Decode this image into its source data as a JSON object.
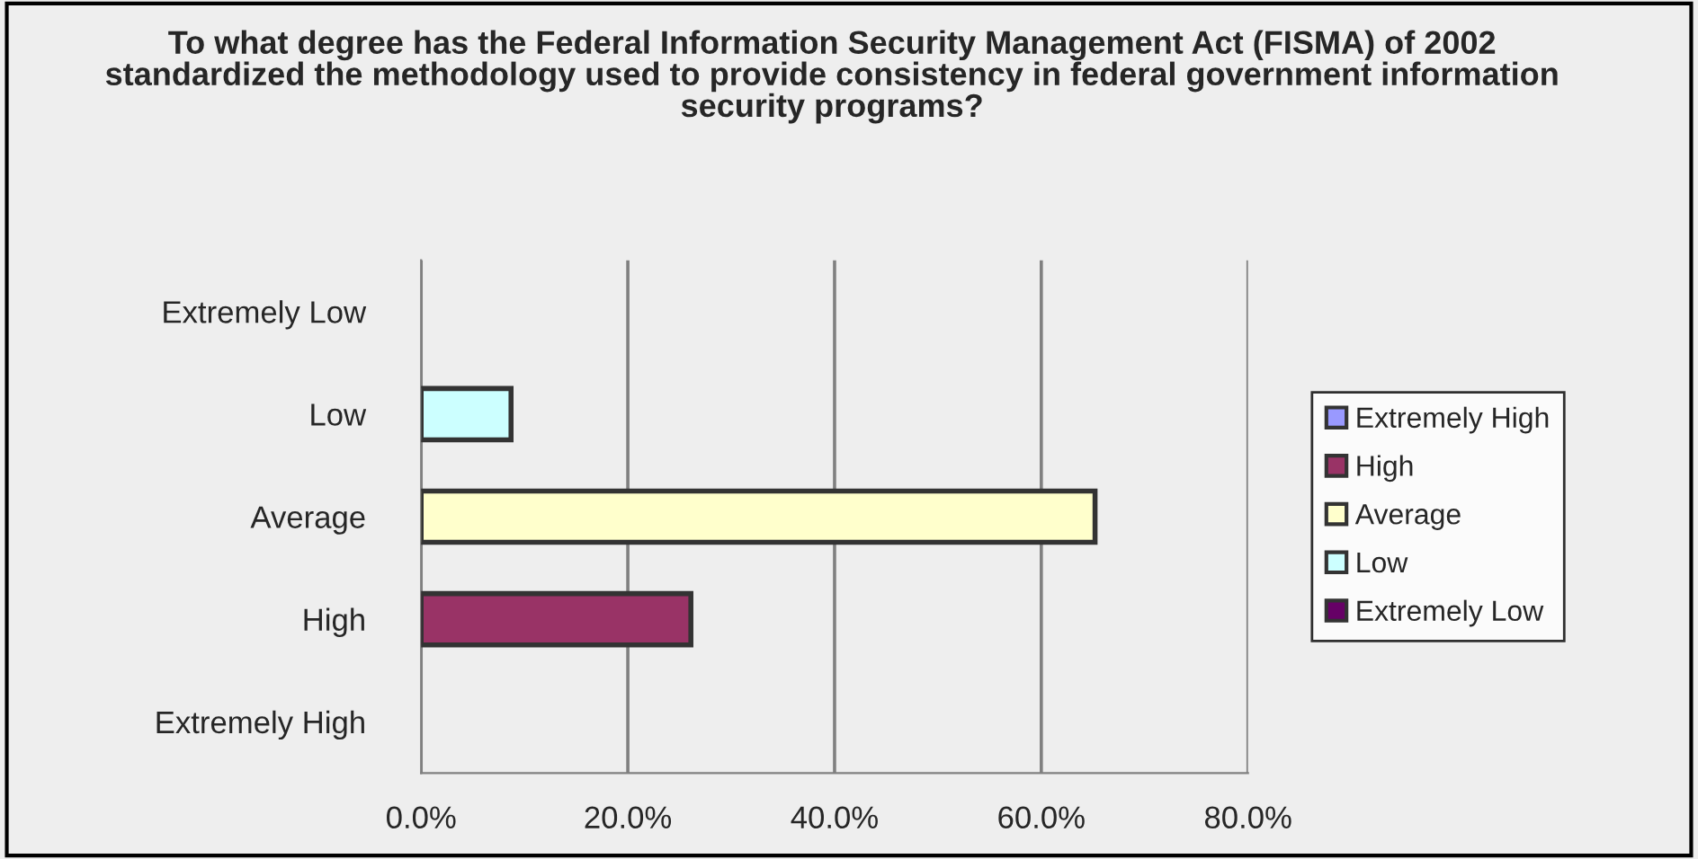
{
  "chart_data": {
    "type": "bar",
    "orientation": "horizontal",
    "title": "To what degree has the Federal Information Security Management Act (FISMA) of 2002 standardized the methodology used to provide consistency in federal government information security programs?",
    "categories": [
      "Extremely Low",
      "Low",
      "Average",
      "High",
      "Extremely High"
    ],
    "series": [
      {
        "name": "Extremely High",
        "color": "#9999ff",
        "values": [
          null,
          null,
          null,
          null,
          null
        ]
      },
      {
        "name": "High",
        "color": "#993366",
        "values": [
          null,
          null,
          null,
          26.1,
          null
        ]
      },
      {
        "name": "Average",
        "color": "#ffffcc",
        "values": [
          null,
          null,
          65.2,
          null,
          null
        ]
      },
      {
        "name": "Low",
        "color": "#ccffff",
        "values": [
          null,
          8.7,
          null,
          null,
          null
        ]
      },
      {
        "name": "Extremely Low",
        "color": "#660066",
        "values": [
          null,
          null,
          null,
          null,
          null
        ]
      }
    ],
    "xlim": [
      0,
      80
    ],
    "xticks": [
      {
        "value": 0,
        "label": "0.0%"
      },
      {
        "value": 20,
        "label": "20.0%"
      },
      {
        "value": 40,
        "label": "40.0%"
      },
      {
        "value": 60,
        "label": "60.0%"
      },
      {
        "value": 80,
        "label": "80.0%"
      }
    ],
    "grid": "x",
    "legend": "right"
  }
}
